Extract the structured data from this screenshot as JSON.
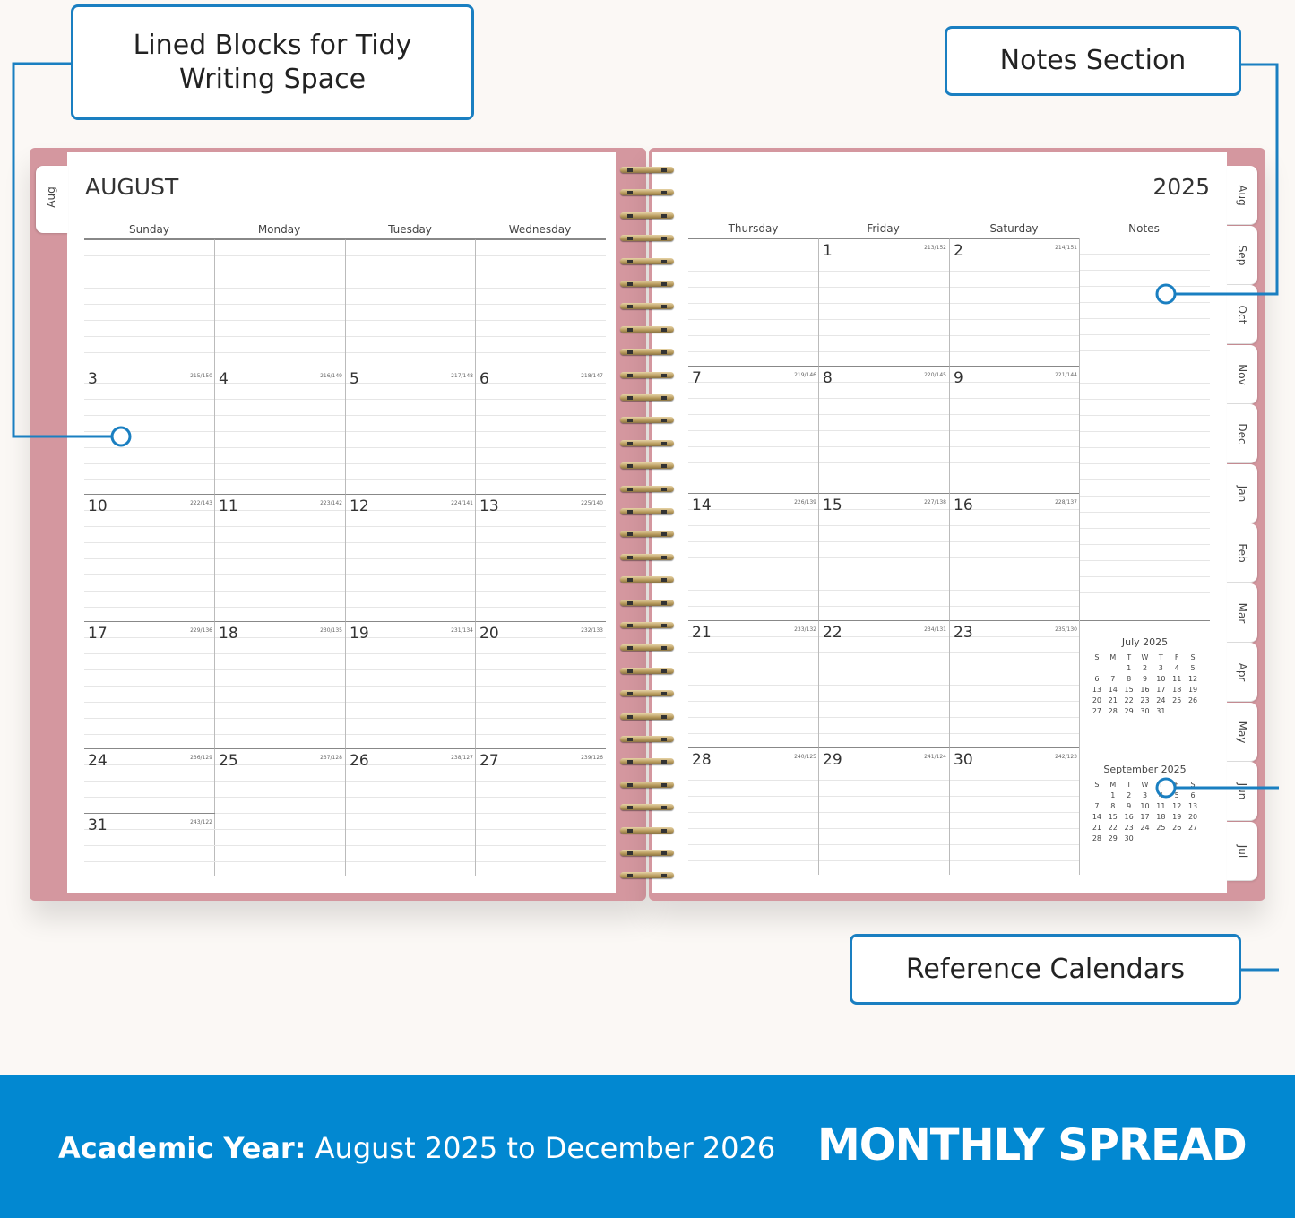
{
  "callouts": {
    "lined_blocks": "Lined Blocks for Tidy Writing Space",
    "notes_section": "Notes Section",
    "reference_calendars": "Reference Calendars"
  },
  "left_page": {
    "month": "AUGUST",
    "tab": "Aug",
    "day_headers": [
      "Sunday",
      "Monday",
      "Tuesday",
      "Wednesday"
    ]
  },
  "right_page": {
    "year": "2025",
    "day_headers": [
      "Thursday",
      "Friday",
      "Saturday",
      "Notes"
    ]
  },
  "weeks": [
    [
      null,
      null,
      null,
      null,
      null,
      "1",
      "2"
    ],
    [
      "3",
      "4",
      "5",
      "6",
      "7",
      "8",
      "9"
    ],
    [
      "10",
      "11",
      "12",
      "13",
      "14",
      "15",
      "16"
    ],
    [
      "17",
      "18",
      "19",
      "20",
      "21",
      "22",
      "23"
    ],
    [
      "24",
      "25",
      "26",
      "27",
      "28",
      "29",
      "30"
    ]
  ],
  "extra_day": "31",
  "day_of_year": {
    "1": "213/152",
    "2": "214/151",
    "3": "215/150",
    "4": "216/149",
    "5": "217/148",
    "6": "218/147",
    "7": "219/146",
    "8": "220/145",
    "9": "221/144",
    "10": "222/143",
    "11": "223/142",
    "12": "224/141",
    "13": "225/140",
    "14": "226/139",
    "15": "227/138",
    "16": "228/137",
    "17": "229/136",
    "18": "230/135",
    "19": "231/134",
    "20": "232/133",
    "21": "233/132",
    "22": "234/131",
    "23": "235/130",
    "24": "236/129",
    "25": "237/128",
    "26": "238/127",
    "27": "239/126",
    "28": "240/125",
    "29": "241/124",
    "30": "242/123",
    "31": "243/122"
  },
  "side_tabs": [
    "Aug",
    "Sep",
    "Oct",
    "Nov",
    "Dec",
    "Jan",
    "Feb",
    "Mar",
    "Apr",
    "May",
    "Jun",
    "Jul"
  ],
  "mini_calendars": [
    {
      "title": "July 2025",
      "dow": [
        "S",
        "M",
        "T",
        "W",
        "T",
        "F",
        "S"
      ],
      "offset": 2,
      "days": 31
    },
    {
      "title": "September 2025",
      "dow": [
        "S",
        "M",
        "T",
        "W",
        "T",
        "F",
        "S"
      ],
      "offset": 1,
      "days": 30
    }
  ],
  "banner": {
    "label": "Academic Year:",
    "range": " August 2025 to December 2026",
    "headline": "MONTHLY SPREAD"
  },
  "colors": {
    "accent": "#1a7fc1",
    "cover": "#d4979f",
    "banner": "#0288d1"
  }
}
